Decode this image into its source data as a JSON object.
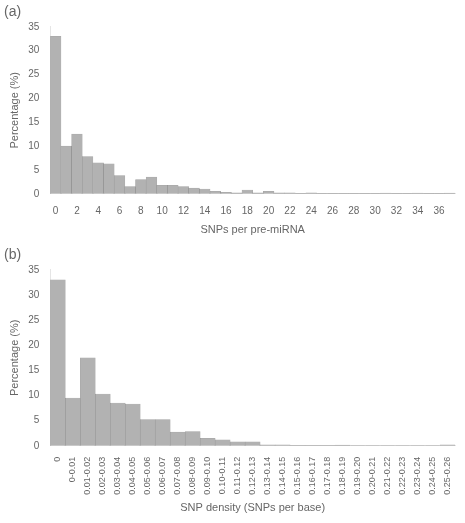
{
  "chart_data": [
    {
      "type": "bar",
      "title": "(a)",
      "categories": [
        "0",
        null,
        "2",
        null,
        "4",
        null,
        "6",
        null,
        "8",
        null,
        "10",
        null,
        "12",
        null,
        "14",
        null,
        "16",
        null,
        "18",
        null,
        "20",
        null,
        "22",
        null,
        "24",
        null,
        "26",
        null,
        "28",
        null,
        "30",
        null,
        "32",
        null,
        "34",
        null,
        "36",
        null
      ],
      "values": [
        33,
        10,
        12.5,
        7.8,
        6.5,
        6.3,
        3.8,
        1.5,
        3.0,
        3.5,
        1.8,
        1.8,
        1.5,
        1.2,
        1.0,
        0.5,
        0.3,
        0.2,
        0.8,
        0.2,
        0.5,
        0.2,
        0.2,
        0.1,
        0.2,
        0.1,
        0.1,
        0.1,
        0.1,
        0.1,
        0.1,
        0.15,
        0.1,
        0.1,
        0.15,
        0.1,
        0.1,
        0.15
      ],
      "x_label": "SNPs per pre-miRNA",
      "y_label": "Percentage (%)",
      "color": "#b2b2b2",
      "ylim": [
        0,
        35
      ],
      "yticks": [
        0,
        5,
        10,
        15,
        20,
        25,
        30,
        35
      ],
      "grid": false
    },
    {
      "type": "bar",
      "title": "(b)",
      "categories": [
        "0",
        "0-0.01",
        "0.01-0.02",
        "0.02-0.03",
        "0.03-0.04",
        "0.04-0.05",
        "0.05-0.06",
        "0.06-0.07",
        "0.07-0.08",
        "0.08-0.09",
        "0.09-0.10",
        "0.10-0.11",
        "0.11-0.12",
        "0.12-0.13",
        "0.13-0.14",
        "0.14-0.15",
        "0.15-0.16",
        "0.16-0.17",
        "0.17-0.18",
        "0.18-0.19",
        "0.19-0.20",
        "0.20-0.21",
        "0.21-0.22",
        "0.22-0.23",
        "0.23-0.24",
        "0.24-0.25",
        "0.25-0.26"
      ],
      "values": [
        33,
        9.5,
        17.5,
        10.3,
        8.5,
        8.3,
        5.2,
        5.2,
        2.7,
        2.8,
        1.5,
        1.2,
        0.8,
        0.8,
        0.2,
        0.2,
        0.1,
        0.1,
        0.1,
        0.15,
        0.05,
        0.05,
        0.05,
        0.05,
        0.05,
        0.05,
        0.2
      ],
      "x_label": "SNP density (SNPs per base)",
      "y_label": "Percentage (%)",
      "color": "#b2b2b2",
      "ylim": [
        0,
        35
      ],
      "yticks": [
        0,
        5,
        10,
        15,
        20,
        25,
        30,
        35
      ],
      "grid": false
    }
  ]
}
